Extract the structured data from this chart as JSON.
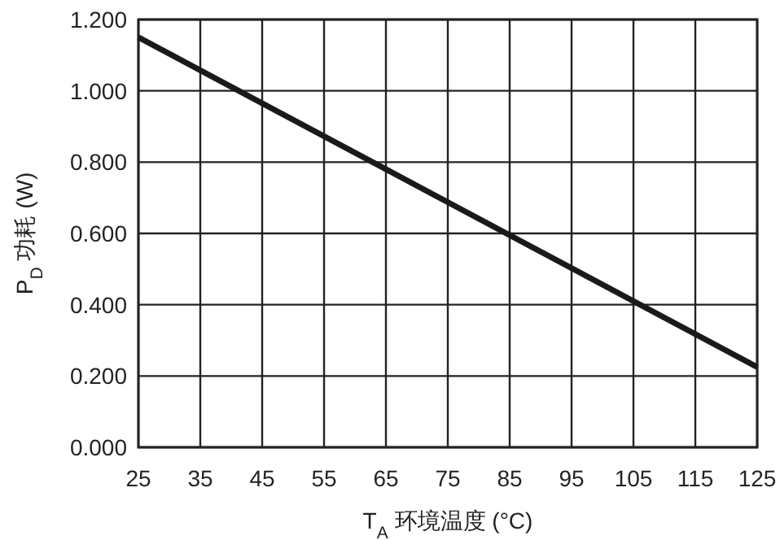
{
  "chart_data": {
    "type": "line",
    "xlabel": "T$_{A}$ 环境温度 (°C)",
    "ylabel": "P$_{D}$ 功耗 (W)",
    "x": [
      25,
      125
    ],
    "series": [
      {
        "color": "#1a1a1a",
        "values": [
          1.15,
          0.225
        ]
      }
    ],
    "xlim": [
      25,
      125
    ],
    "xticks": [
      25,
      35,
      45,
      55,
      65,
      75,
      85,
      95,
      105,
      115,
      125
    ],
    "ylim": [
      0,
      1.2
    ],
    "yticks": [
      {
        "value": 0,
        "label": "0.000"
      },
      {
        "value": 0.2,
        "label": "0.200"
      },
      {
        "value": 0.4,
        "label": "0.400"
      },
      {
        "value": 0.6,
        "label": "0.600"
      },
      {
        "value": 0.8,
        "label": "0.800"
      },
      {
        "value": 1.0,
        "label": "1.000"
      },
      {
        "value": 1.2,
        "label": "1.200"
      }
    ],
    "grid": true,
    "marker": "none",
    "line_style": "solid"
  }
}
